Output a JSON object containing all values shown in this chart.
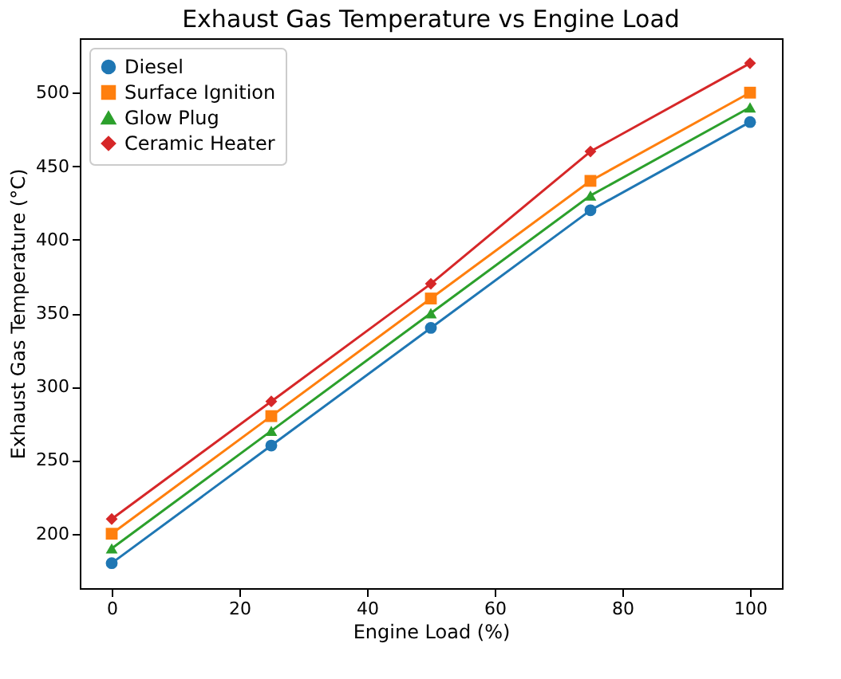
{
  "chart_data": {
    "type": "line",
    "title": "Exhaust Gas Temperature vs Engine Load",
    "xlabel": "Engine Load (%)",
    "ylabel": "Exhaust Gas Temperature (°C)",
    "x": [
      0,
      25,
      50,
      75,
      100
    ],
    "series": [
      {
        "name": "Diesel",
        "color": "#1f77b4",
        "marker": "circle",
        "values": [
          180,
          260,
          340,
          420,
          480
        ]
      },
      {
        "name": "Surface Ignition",
        "color": "#ff7f0e",
        "marker": "square",
        "values": [
          200,
          280,
          360,
          440,
          500
        ]
      },
      {
        "name": "Glow Plug",
        "color": "#2ca02c",
        "marker": "triangle",
        "values": [
          190,
          270,
          350,
          430,
          490
        ]
      },
      {
        "name": "Ceramic Heater",
        "color": "#d62728",
        "marker": "diamond",
        "values": [
          210,
          290,
          370,
          460,
          520
        ]
      }
    ],
    "xlim": [
      -5,
      105
    ],
    "xticks": [
      0,
      20,
      40,
      60,
      80,
      100
    ],
    "ylim": [
      163,
      537
    ],
    "yticks": [
      200,
      250,
      300,
      350,
      400,
      450,
      500
    ],
    "grid": false,
    "legend": "top left"
  }
}
